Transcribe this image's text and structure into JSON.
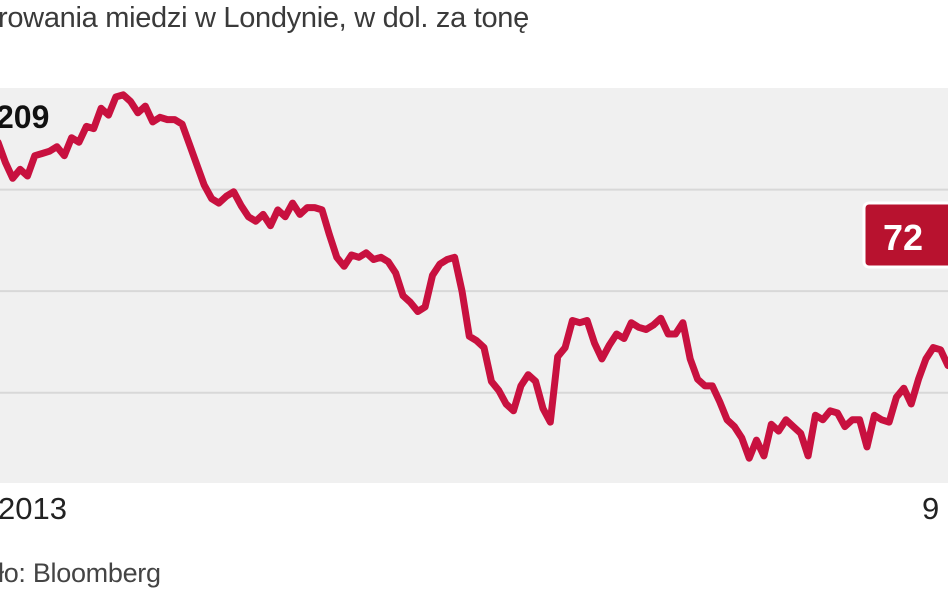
{
  "subtitle": "rowania miedzi w Londynie, w dol. za tonę",
  "source": "ło: Bloomberg",
  "colors": {
    "line": "#c8113f",
    "plot_bg": "#f0f0f0",
    "grid": "#d8d8d8",
    "badge": "#b8122f"
  },
  "chart_data": {
    "type": "line",
    "title": "",
    "xlabel": "",
    "ylabel": "",
    "ylim": [
      6600,
      8350
    ],
    "grid": true,
    "x_tick_labels": [
      "2013",
      "9"
    ],
    "start_label": "209",
    "end_label": "72",
    "series": [
      {
        "values": [
          8110,
          8020,
          7950,
          7990,
          7960,
          8050,
          8060,
          8070,
          8090,
          8050,
          8130,
          8110,
          8180,
          8170,
          8260,
          8230,
          8310,
          8320,
          8290,
          8240,
          8270,
          8200,
          8220,
          8210,
          8210,
          8190,
          8100,
          8010,
          7920,
          7860,
          7840,
          7870,
          7890,
          7830,
          7780,
          7760,
          7790,
          7740,
          7810,
          7780,
          7840,
          7790,
          7820,
          7820,
          7810,
          7700,
          7600,
          7560,
          7610,
          7600,
          7620,
          7590,
          7600,
          7580,
          7530,
          7430,
          7400,
          7360,
          7380,
          7520,
          7570,
          7590,
          7600,
          7450,
          7250,
          7230,
          7200,
          7050,
          7010,
          6950,
          6920,
          7030,
          7080,
          7050,
          6930,
          6870,
          7160,
          7200,
          7320,
          7310,
          7320,
          7220,
          7150,
          7210,
          7260,
          7240,
          7310,
          7290,
          7280,
          7300,
          7330,
          7260,
          7260,
          7310,
          7150,
          7060,
          7030,
          7030,
          6960,
          6880,
          6850,
          6800,
          6710,
          6790,
          6720,
          6860,
          6830,
          6880,
          6850,
          6820,
          6720,
          6900,
          6880,
          6920,
          6910,
          6850,
          6880,
          6880,
          6760,
          6900,
          6880,
          6870,
          6980,
          7020,
          6950,
          7060,
          7150,
          7200,
          7190,
          7120
        ]
      }
    ]
  }
}
